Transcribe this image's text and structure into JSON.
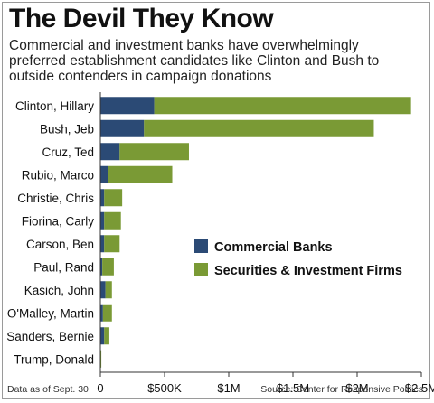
{
  "chart_data": {
    "type": "bar",
    "orientation": "horizontal",
    "stacked": true,
    "title": "The Devil They Know",
    "subtitle": "Commercial and investment banks have overwhelmingly preferred establishment candidates like Clinton and Bush to outside contenders in campaign donations",
    "categories": [
      "Clinton, Hillary",
      "Bush, Jeb",
      "Cruz, Ted",
      "Rubio, Marco",
      "Christie, Chris",
      "Fiorina, Carly",
      "Carson, Ben",
      "Paul, Rand",
      "Kasich, John",
      "O'Malley, Martin",
      "Sanders, Bernie",
      "Trump, Donald"
    ],
    "series": [
      {
        "name": "Commercial Banks",
        "color": "#2b4a75",
        "values": [
          420000,
          340000,
          150000,
          60000,
          30000,
          30000,
          30000,
          15000,
          40000,
          20000,
          30000,
          2000
        ]
      },
      {
        "name": "Securities & Investment Firms",
        "color": "#7a9a35",
        "values": [
          2000000,
          1790000,
          540000,
          500000,
          140000,
          130000,
          120000,
          90000,
          50000,
          70000,
          40000,
          3000
        ]
      }
    ],
    "xlim": [
      0,
      2500000
    ],
    "xticks": [
      {
        "value": 0,
        "label": "0"
      },
      {
        "value": 500000,
        "label": "$500K"
      },
      {
        "value": 1000000,
        "label": "$1M"
      },
      {
        "value": 1500000,
        "label": "$1.5M"
      },
      {
        "value": 2000000,
        "label": "$2M"
      },
      {
        "value": 2500000,
        "label": "$2.5M"
      }
    ],
    "grid": false,
    "legend_position": "right"
  },
  "footer": {
    "note": "Data as of Sept. 30",
    "source": "Source: Center for Responsive Politics"
  }
}
